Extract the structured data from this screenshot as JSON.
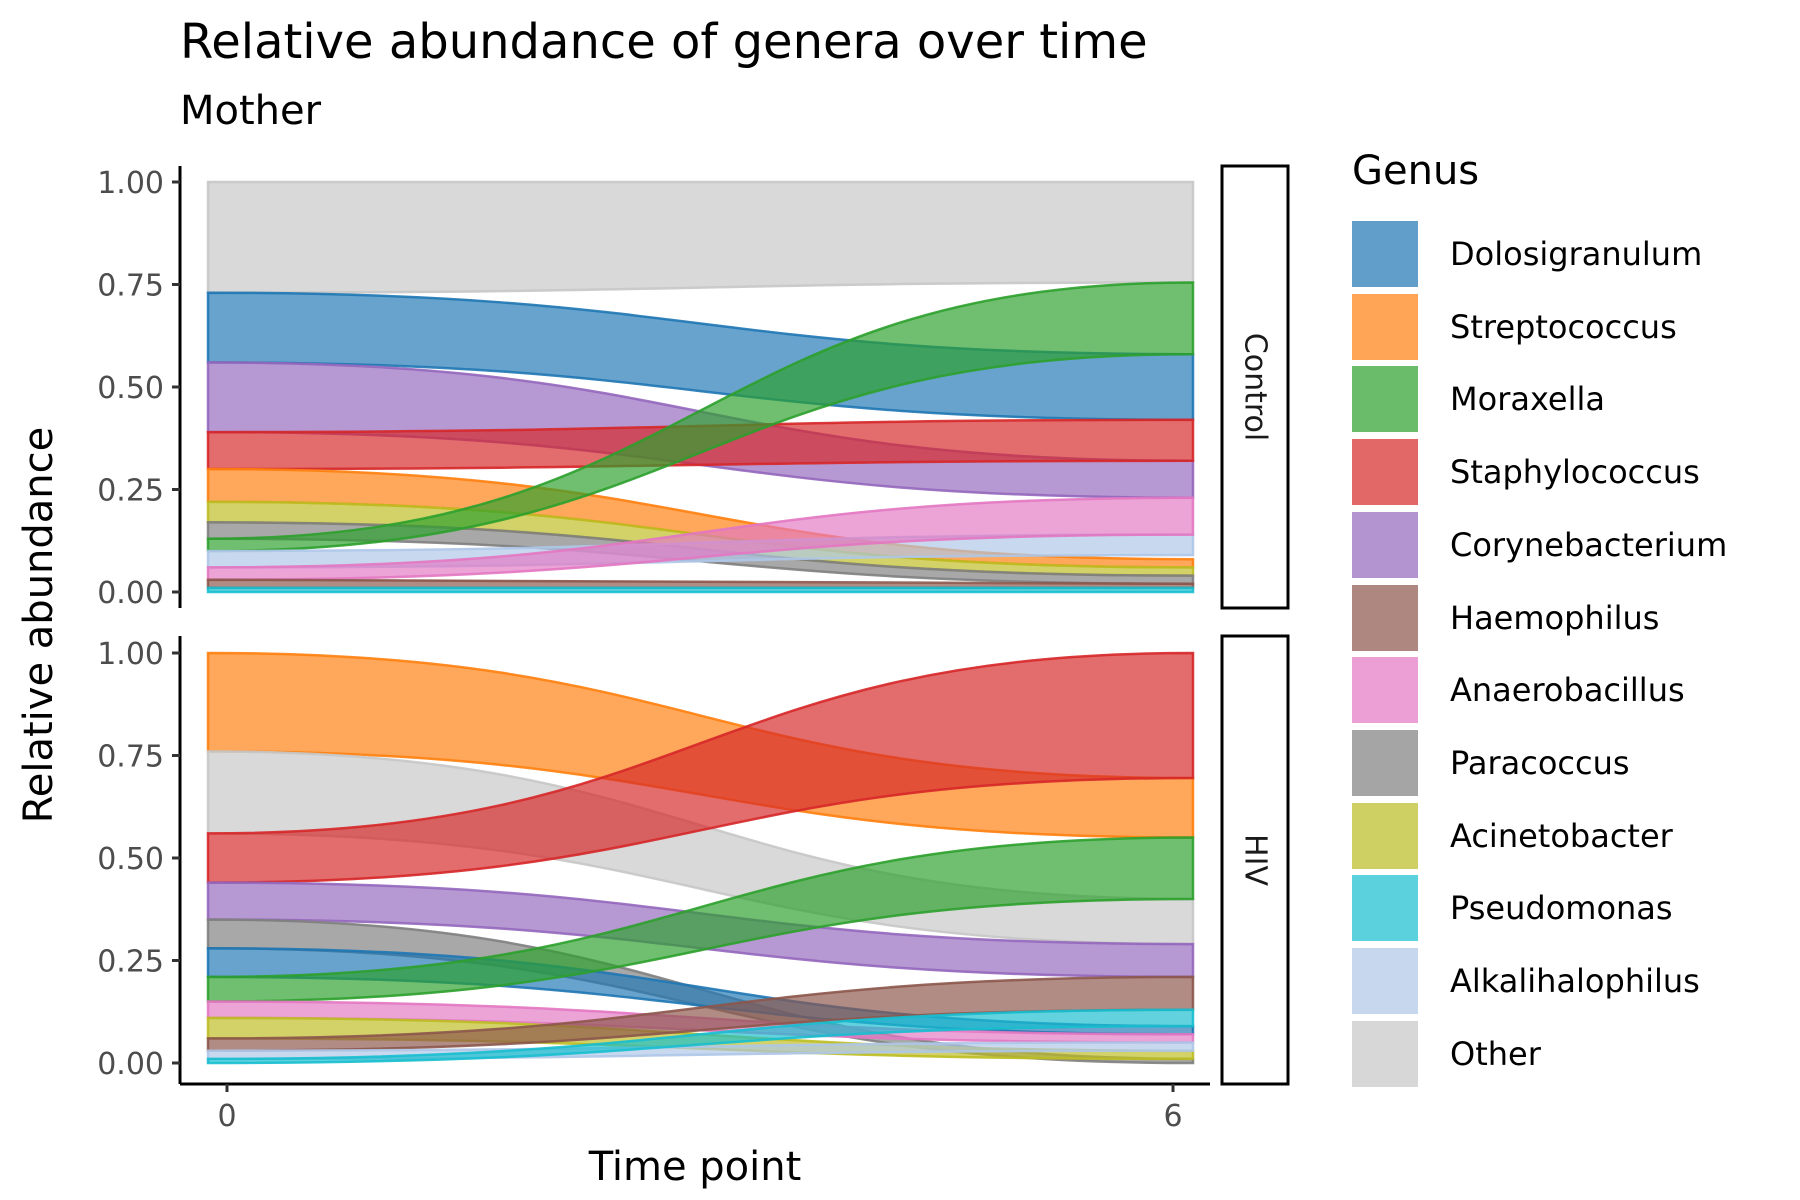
{
  "chart_data": {
    "type": "area",
    "subtype": "alluvial",
    "title": "Relative abundance of genera over time",
    "subtitle": "Mother",
    "xlabel": "Time point",
    "ylabel": "Relative abundance",
    "x": [
      0,
      6
    ],
    "x_ticks": [
      "0",
      "6"
    ],
    "ylim": [
      0,
      1
    ],
    "y_ticks": [
      "0.00",
      "0.25",
      "0.50",
      "0.75",
      "1.00"
    ],
    "grid": false,
    "legend_title": "Genus",
    "legend_position": "right",
    "genera": [
      {
        "name": "Dolosigranulum",
        "color": "#1f77b4"
      },
      {
        "name": "Streptococcus",
        "color": "#ff7f0e"
      },
      {
        "name": "Moraxella",
        "color": "#2ca02c"
      },
      {
        "name": "Staphylococcus",
        "color": "#d62728"
      },
      {
        "name": "Corynebacterium",
        "color": "#9467bd"
      },
      {
        "name": "Haemophilus",
        "color": "#8c564b"
      },
      {
        "name": "Anaerobacillus",
        "color": "#e377c2"
      },
      {
        "name": "Paracoccus",
        "color": "#7f7f7f"
      },
      {
        "name": "Acinetobacter",
        "color": "#bcbd22"
      },
      {
        "name": "Pseudomonas",
        "color": "#17becf"
      },
      {
        "name": "Alkalihalophilus",
        "color": "#aec7e8"
      },
      {
        "name": "Other",
        "color": "#c7c7c7"
      }
    ],
    "panels": [
      {
        "facet": "Control",
        "strata": [
          {
            "genus": "Other",
            "t0": [
              0.73,
              1.0
            ],
            "t6": [
              0.755,
              1.0
            ]
          },
          {
            "genus": "Dolosigranulum",
            "t0": [
              0.56,
              0.73
            ],
            "t6": [
              0.42,
              0.58
            ]
          },
          {
            "genus": "Corynebacterium",
            "t0": [
              0.39,
              0.56
            ],
            "t6": [
              0.23,
              0.32
            ]
          },
          {
            "genus": "Staphylococcus",
            "t0": [
              0.3,
              0.39
            ],
            "t6": [
              0.32,
              0.42
            ]
          },
          {
            "genus": "Streptococcus",
            "t0": [
              0.22,
              0.3
            ],
            "t6": [
              0.06,
              0.08
            ]
          },
          {
            "genus": "Acinetobacter",
            "t0": [
              0.17,
              0.22
            ],
            "t6": [
              0.04,
              0.06
            ]
          },
          {
            "genus": "Paracoccus",
            "t0": [
              0.13,
              0.17
            ],
            "t6": [
              0.02,
              0.04
            ]
          },
          {
            "genus": "Moraxella",
            "t0": [
              0.1,
              0.13
            ],
            "t6": [
              0.58,
              0.755
            ]
          },
          {
            "genus": "Alkalihalophilus",
            "t0": [
              0.06,
              0.1
            ],
            "t6": [
              0.09,
              0.14
            ]
          },
          {
            "genus": "Anaerobacillus",
            "t0": [
              0.03,
              0.06
            ],
            "t6": [
              0.14,
              0.23
            ]
          },
          {
            "genus": "Haemophilus",
            "t0": [
              0.01,
              0.03
            ],
            "t6": [
              0.01,
              0.02
            ]
          },
          {
            "genus": "Pseudomonas",
            "t0": [
              0.0,
              0.01
            ],
            "t6": [
              0.0,
              0.01
            ]
          }
        ]
      },
      {
        "facet": "HIV",
        "strata": [
          {
            "genus": "Streptococcus",
            "t0": [
              0.76,
              1.0
            ],
            "t6": [
              0.55,
              0.695
            ]
          },
          {
            "genus": "Other",
            "t0": [
              0.56,
              0.76
            ],
            "t6": [
              0.29,
              0.4
            ]
          },
          {
            "genus": "Staphylococcus",
            "t0": [
              0.44,
              0.56
            ],
            "t6": [
              0.695,
              1.0
            ]
          },
          {
            "genus": "Corynebacterium",
            "t0": [
              0.35,
              0.44
            ],
            "t6": [
              0.21,
              0.29
            ]
          },
          {
            "genus": "Paracoccus",
            "t0": [
              0.28,
              0.35
            ],
            "t6": [
              0.0,
              0.01
            ]
          },
          {
            "genus": "Dolosigranulum",
            "t0": [
              0.21,
              0.28
            ],
            "t6": [
              0.07,
              0.09
            ]
          },
          {
            "genus": "Moraxella",
            "t0": [
              0.15,
              0.21
            ],
            "t6": [
              0.4,
              0.55
            ]
          },
          {
            "genus": "Anaerobacillus",
            "t0": [
              0.11,
              0.15
            ],
            "t6": [
              0.05,
              0.07
            ]
          },
          {
            "genus": "Acinetobacter",
            "t0": [
              0.06,
              0.11
            ],
            "t6": [
              0.01,
              0.03
            ]
          },
          {
            "genus": "Haemophilus",
            "t0": [
              0.03,
              0.06
            ],
            "t6": [
              0.13,
              0.21
            ]
          },
          {
            "genus": "Alkalihalophilus",
            "t0": [
              0.01,
              0.03
            ],
            "t6": [
              0.03,
              0.05
            ]
          },
          {
            "genus": "Pseudomonas",
            "t0": [
              0.0,
              0.01
            ],
            "t6": [
              0.09,
              0.13
            ]
          }
        ]
      }
    ]
  }
}
